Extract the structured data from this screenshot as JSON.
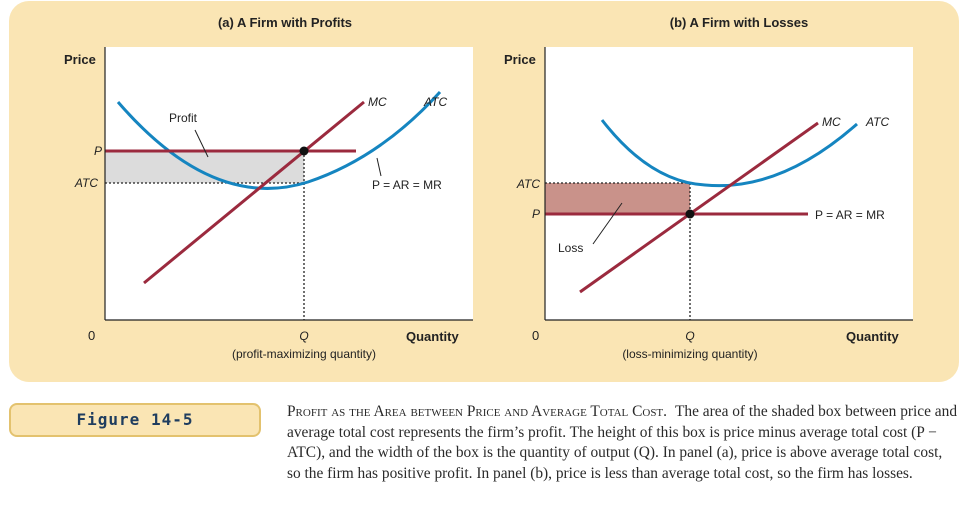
{
  "figure": {
    "label": "Figure 14-5",
    "caption_title": "Profit as the Area between Price and Average Total Cost.",
    "caption_body": "The area of the shaded box between price and average total cost represents the firm’s profit. The height of this box is price minus average total cost (P − ATC), and the width of the box is the quantity of output (Q). In panel (a), price is above average total cost, so the firm has positive profit. In panel (b), price is less than average total cost, so the firm has losses."
  },
  "colors": {
    "panel_bg": "#fae5b4",
    "atc_curve": "#1585c0",
    "mc_and_price": "#9b2a3e",
    "profit_fill": "#dcdcdc",
    "loss_fill": "#c9928a"
  },
  "panel_a": {
    "title": "(a) A Firm with Profits",
    "y_axis_label": "Price",
    "x_axis_label": "Quantity",
    "origin": "0",
    "p_tick": "P",
    "atc_tick": "ATC",
    "q_tick": "Q",
    "q_note": "(profit-maximizing quantity)",
    "mc_label": "MC",
    "atc_label": "ATC",
    "price_line_label": "P = AR = MR",
    "area_label": "Profit"
  },
  "panel_b": {
    "title": "(b) A Firm with Losses",
    "y_axis_label": "Price",
    "x_axis_label": "Quantity",
    "origin": "0",
    "p_tick": "P",
    "atc_tick": "ATC",
    "q_tick": "Q",
    "q_note": "(loss-minimizing quantity)",
    "mc_label": "MC",
    "atc_label": "ATC",
    "price_line_label": "P = AR = MR",
    "area_label": "Loss"
  }
}
